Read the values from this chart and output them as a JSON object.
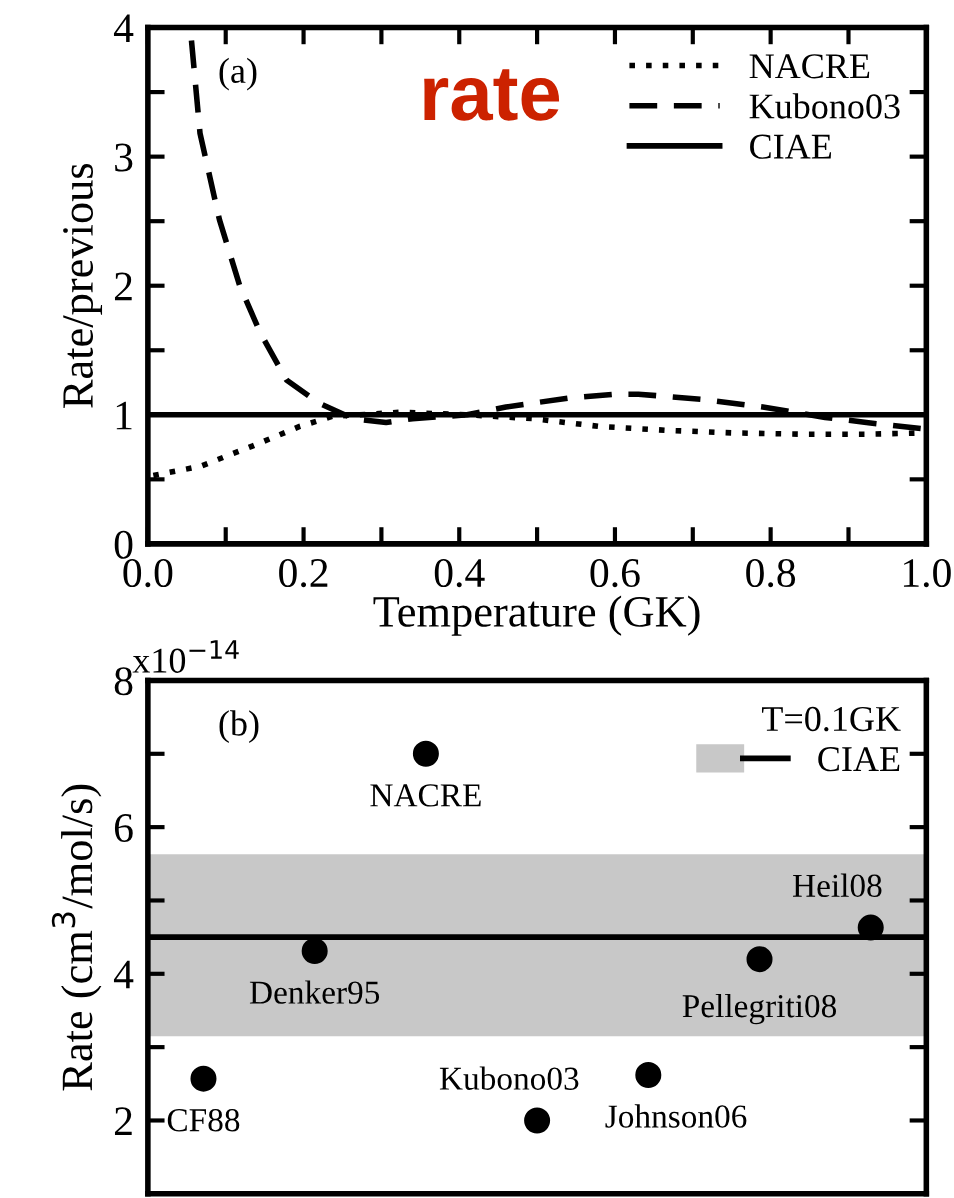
{
  "chart_data": [
    {
      "type": "line",
      "xlabel": "Temperature (GK)",
      "ylabel": "Rate/previous",
      "legend": "top right",
      "marker": "none",
      "annotations": [
        "(a)",
        "rate"
      ],
      "xlim": [
        0,
        1
      ],
      "ylim": [
        0,
        4
      ],
      "xticks": [
        {
          "value": 0,
          "label": "0.0"
        },
        {
          "value": 0.1,
          "label": null
        },
        {
          "value": 0.2,
          "label": "0.2"
        },
        {
          "value": 0.3,
          "label": null
        },
        {
          "value": 0.4,
          "label": "0.4"
        },
        {
          "value": 0.5,
          "label": null
        },
        {
          "value": 0.6,
          "label": "0.6"
        },
        {
          "value": 0.7,
          "label": null
        },
        {
          "value": 0.8,
          "label": "0.8"
        },
        {
          "value": 0.9,
          "label": null
        },
        {
          "value": 1,
          "label": "1.0"
        }
      ],
      "yticks": [
        0,
        {
          "value": 0.5,
          "label": null
        },
        1,
        {
          "value": 1.5,
          "label": null
        },
        2,
        {
          "value": 2.5,
          "label": null
        },
        3,
        {
          "value": 3.5,
          "label": null
        },
        4
      ],
      "series": [
        {
          "name": "NACRE",
          "color": "#000000",
          "line_style": "dotted",
          "x": [
            0.007,
            0.067,
            0.135,
            0.195,
            0.238,
            0.272,
            0.324,
            0.41,
            0.495,
            0.58,
            0.666,
            0.75,
            0.837,
            0.923,
            1.0
          ],
          "values": [
            0.53,
            0.6,
            0.76,
            0.91,
            0.99,
            1.0,
            1.02,
            1.0,
            0.97,
            0.91,
            0.88,
            0.86,
            0.85,
            0.85,
            0.86
          ]
        },
        {
          "name": "Kubono03",
          "color": "#000000",
          "line_style": "dashed",
          "x": [
            0.056,
            0.067,
            0.092,
            0.118,
            0.144,
            0.178,
            0.22,
            0.264,
            0.306,
            0.34,
            0.41,
            0.46,
            0.54,
            0.6,
            0.63,
            0.71,
            0.79,
            0.87,
            0.923,
            1.0
          ],
          "values": [
            3.9,
            3.18,
            2.51,
            2.0,
            1.64,
            1.27,
            1.09,
            0.97,
            0.94,
            0.97,
            1.0,
            1.06,
            1.13,
            1.16,
            1.16,
            1.12,
            1.06,
            0.98,
            0.94,
            0.89
          ]
        },
        {
          "name": "CIAE",
          "color": "#000000",
          "line_style": "solid",
          "x": [
            0,
            1
          ],
          "values": [
            1,
            1
          ]
        }
      ]
    },
    {
      "type": "scatter",
      "ylabel": "Rate (cm$^{3}$/mol/s)",
      "legend": "top right",
      "legend_title": "T=0.1GK",
      "marker": "circle",
      "tick_labels": "y",
      "annotations": [
        "(b)",
        "x10$^{−14}$"
      ],
      "categories": [
        null,
        null,
        null,
        null,
        null,
        null,
        null
      ],
      "ylim": [
        1,
        8
      ],
      "yticks": [
        {
          "value": 1,
          "label": null
        },
        2,
        {
          "value": 3,
          "label": null
        },
        4,
        {
          "value": 5,
          "label": null
        },
        6,
        {
          "value": 7,
          "label": null
        },
        8
      ],
      "series": [
        {
          "color": "#000000",
          "values": [
            2.57,
            4.31,
            7.0,
            2.0,
            2.62,
            4.2,
            4.63
          ],
          "value_labels": [
            "CF88",
            "Denker95",
            "NACRE",
            "Kubono03",
            "Johnson06",
            "Pellegriti08",
            "Heil08"
          ]
        }
      ],
      "ref_lines": [
        {
          "axis": "y",
          "value": 4.5,
          "label": "CIAE",
          "color": "#000000"
        }
      ],
      "bands": [
        {
          "axis": "y",
          "from": 3.15,
          "to": 5.63,
          "color": "#c8c8c8"
        }
      ]
    }
  ]
}
